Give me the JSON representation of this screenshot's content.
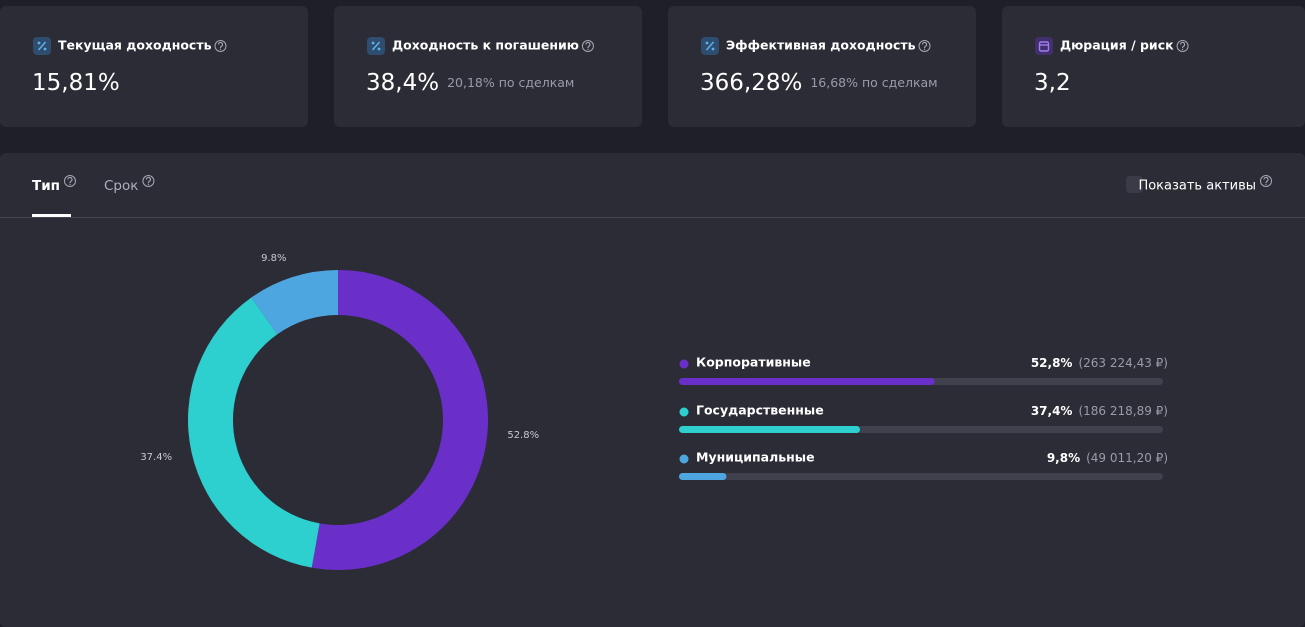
{
  "cards": [
    {
      "title": "Текущая доходность",
      "value": "15,81%"
    },
    {
      "title": "Доходность к погашению",
      "value": "38,4%",
      "note": "20,18% по сделкам"
    },
    {
      "title": "Эффективная доходность",
      "value": "366,28%",
      "note": "16,68% по сделкам"
    },
    {
      "title": "Дюрация / риск",
      "value": "3,2"
    }
  ],
  "tabs": [
    "Тип",
    "Срок"
  ],
  "toggle_label": "Показать активы",
  "chart_data": {
    "type": "pie",
    "donut": true,
    "categories": [
      "Корпоративные",
      "Государственные",
      "Муниципальные"
    ],
    "values": [
      52.8,
      37.4,
      9.8
    ],
    "value_labels": [
      "52.8%",
      "37.4%",
      "9.8%"
    ],
    "colors": [
      "#6a2fc8",
      "#2ecfcf",
      "#4ea6e0"
    ],
    "legend_value_labels": [
      "52,8%",
      "37,4%",
      "9,8%"
    ],
    "legend_amounts": [
      "(263 224,43 ₽)",
      "(186 218,89 ₽)",
      "(49 011,20 ₽)"
    ]
  }
}
